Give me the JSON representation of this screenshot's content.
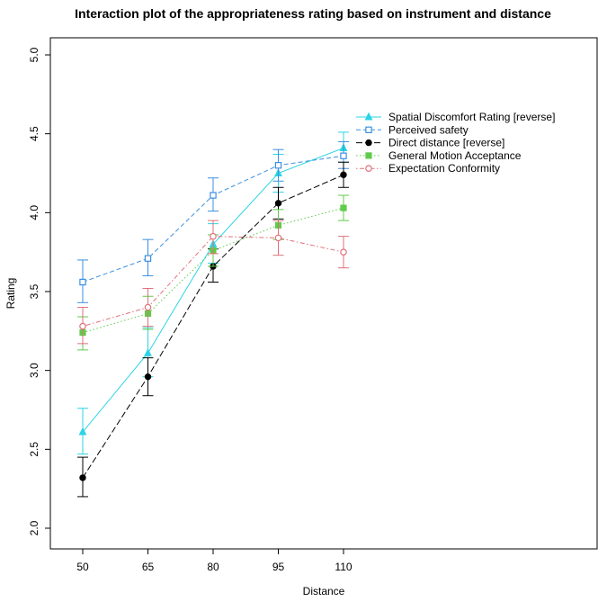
{
  "chart_data": {
    "type": "line",
    "title": "Interaction plot of the appropriateness rating based on instrument and distance",
    "xlabel": "Distance",
    "ylabel": "Rating",
    "categories": [
      "50",
      "65",
      "80",
      "95",
      "110"
    ],
    "ylim": [
      2.0,
      5.0
    ],
    "yticks": [
      "2.0",
      "2.5",
      "3.0",
      "3.5",
      "4.0",
      "4.5",
      "5.0"
    ],
    "legend_position": "top-right",
    "series": [
      {
        "name": "Spatial Discomfort Rating [reverse]",
        "color": "#2BD4E6",
        "marker": "filled-triangle",
        "line": "solid",
        "values": [
          2.61,
          3.11,
          3.8,
          4.25,
          4.41
        ],
        "err_low": [
          2.47,
          2.96,
          3.68,
          4.13,
          4.32
        ],
        "err_high": [
          2.76,
          3.27,
          3.93,
          4.37,
          4.51
        ]
      },
      {
        "name": "Perceived safety",
        "color": "#3A8FE0",
        "marker": "open-square",
        "line": "dashed",
        "values": [
          3.56,
          3.71,
          4.11,
          4.3,
          4.36
        ],
        "err_low": [
          3.43,
          3.6,
          4.01,
          4.2,
          4.28
        ],
        "err_high": [
          3.7,
          3.83,
          4.22,
          4.4,
          4.45
        ]
      },
      {
        "name": "Direct distance [reverse]",
        "color": "#000000",
        "marker": "filled-circle",
        "line": "longdash",
        "values": [
          2.32,
          2.96,
          3.66,
          4.06,
          4.24
        ],
        "err_low": [
          2.2,
          2.84,
          3.56,
          3.96,
          4.16
        ],
        "err_high": [
          2.45,
          3.08,
          3.77,
          4.16,
          4.32
        ]
      },
      {
        "name": "General Motion Acceptance",
        "color": "#5FCB4A",
        "marker": "filled-square",
        "line": "dotted",
        "values": [
          3.24,
          3.36,
          3.76,
          3.92,
          4.03
        ],
        "err_low": [
          3.13,
          3.26,
          3.66,
          3.83,
          3.95
        ],
        "err_high": [
          3.34,
          3.47,
          3.86,
          4.02,
          4.11
        ]
      },
      {
        "name": "Expectation Conformity",
        "color": "#E0707A",
        "marker": "open-circle",
        "line": "dotdash",
        "values": [
          3.28,
          3.4,
          3.85,
          3.84,
          3.75
        ],
        "err_low": [
          3.17,
          3.28,
          3.74,
          3.73,
          3.65
        ],
        "err_high": [
          3.4,
          3.52,
          3.95,
          3.95,
          3.85
        ]
      }
    ]
  }
}
